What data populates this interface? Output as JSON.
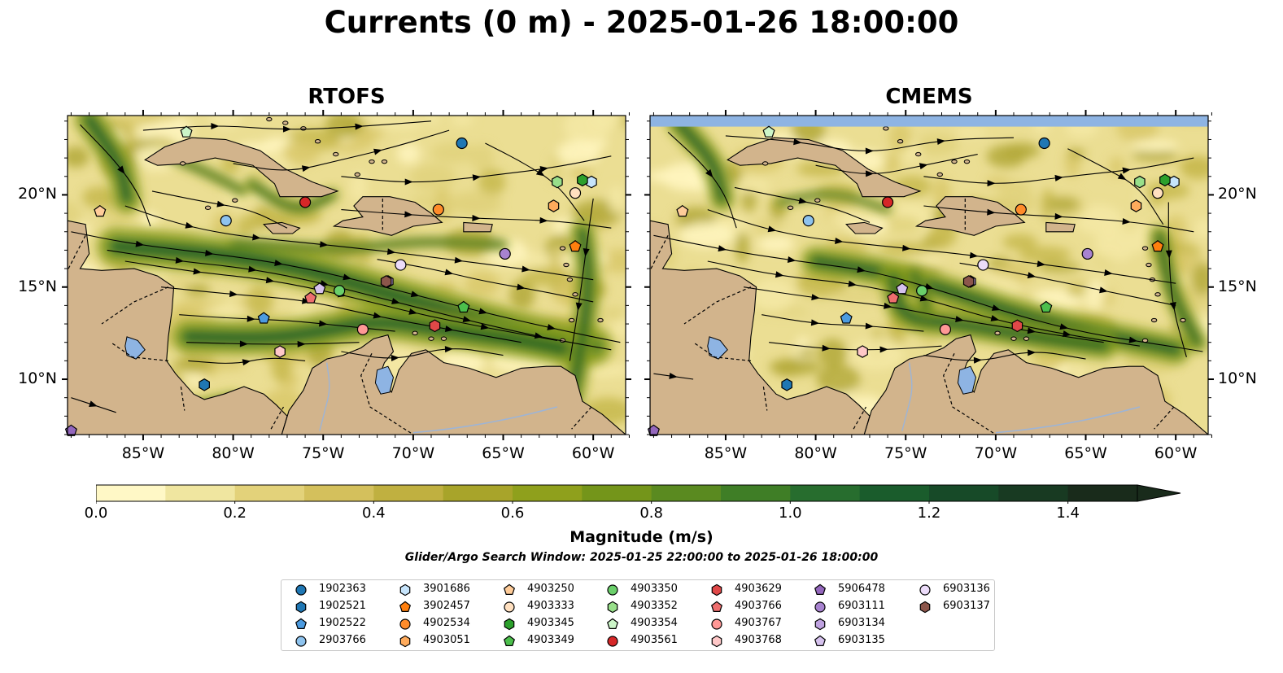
{
  "title": "Currents (0 m) - 2025-01-26 18:00:00",
  "panels": [
    {
      "title": "RTOFS"
    },
    {
      "title": "CMEMS"
    }
  ],
  "axes": {
    "lon_ticks": [
      "85°W",
      "80°W",
      "75°W",
      "70°W",
      "65°W",
      "60°W"
    ],
    "lat_ticks": [
      "20°N",
      "15°N",
      "10°N"
    ]
  },
  "colorbar": {
    "label": "Magnitude (m/s)",
    "ticks": [
      "0.0",
      "0.2",
      "0.4",
      "0.6",
      "0.8",
      "1.0",
      "1.2",
      "1.4"
    ],
    "range": [
      0,
      1.5
    ],
    "extend": "max",
    "colors": [
      "#fff8c6",
      "#f0e6a0",
      "#e3d27a",
      "#d4c05c",
      "#c0b040",
      "#a8a42a",
      "#8fa01c",
      "#74951a",
      "#5a8a20",
      "#3f7e26",
      "#276d2e",
      "#1a5c2c",
      "#174a28",
      "#183a22",
      "#192b1b"
    ]
  },
  "search_window": "Glider/Argo Search Window: 2025-01-25 22:00:00 to 2025-01-26 18:00:00",
  "legend": [
    {
      "id": "1902363",
      "marker": "circle",
      "color": "#1f77b4"
    },
    {
      "id": "1902521",
      "marker": "hexagon",
      "color": "#1f77b4"
    },
    {
      "id": "1902522",
      "marker": "pentagon",
      "color": "#4c9be0"
    },
    {
      "id": "2903766",
      "marker": "circle",
      "color": "#8ec3ee"
    },
    {
      "id": "3901686",
      "marker": "hexagon",
      "color": "#c6e4fb"
    },
    {
      "id": "3902457",
      "marker": "pentagon",
      "color": "#ff7f0e"
    },
    {
      "id": "4902534",
      "marker": "circle",
      "color": "#ff8c2a"
    },
    {
      "id": "4903051",
      "marker": "hexagon",
      "color": "#ffab5c"
    },
    {
      "id": "4903250",
      "marker": "pentagon",
      "color": "#ffcc99"
    },
    {
      "id": "4903333",
      "marker": "circle",
      "color": "#ffe0c0"
    },
    {
      "id": "4903345",
      "marker": "hexagon",
      "color": "#2ca02c"
    },
    {
      "id": "4903349",
      "marker": "pentagon",
      "color": "#4cbf4c"
    },
    {
      "id": "4903350",
      "marker": "circle",
      "color": "#6acf6a"
    },
    {
      "id": "4903352",
      "marker": "hexagon",
      "color": "#98df8a"
    },
    {
      "id": "4903354",
      "marker": "pentagon",
      "color": "#ccf5c8"
    },
    {
      "id": "4903561",
      "marker": "circle",
      "color": "#d62728"
    },
    {
      "id": "4903629",
      "marker": "hexagon",
      "color": "#e04848"
    },
    {
      "id": "4903766",
      "marker": "pentagon",
      "color": "#ee6e6e"
    },
    {
      "id": "4903767",
      "marker": "circle",
      "color": "#ff9896"
    },
    {
      "id": "4903768",
      "marker": "hexagon",
      "color": "#ffc8c8"
    },
    {
      "id": "5906478",
      "marker": "pentagon",
      "color": "#9467bd"
    },
    {
      "id": "6903111",
      "marker": "circle",
      "color": "#a883d0"
    },
    {
      "id": "6903134",
      "marker": "hexagon",
      "color": "#bfa2e0"
    },
    {
      "id": "6903135",
      "marker": "pentagon",
      "color": "#d6c2ee"
    },
    {
      "id": "6903136",
      "marker": "circle",
      "color": "#ecdcfa"
    },
    {
      "id": "6903137",
      "marker": "hexagon",
      "color": "#8c564b"
    }
  ],
  "floats": [
    {
      "id": "1902363",
      "lon": -67.3,
      "lat": 22.8
    },
    {
      "id": "1902521",
      "lon": -81.6,
      "lat": 9.7
    },
    {
      "id": "1902522",
      "lon": -78.3,
      "lat": 13.3
    },
    {
      "id": "2903766",
      "lon": -80.4,
      "lat": 18.6
    },
    {
      "id": "3901686",
      "lon": -60.1,
      "lat": 20.7
    },
    {
      "id": "3902457",
      "lon": -61.0,
      "lat": 17.2
    },
    {
      "id": "4902534",
      "lon": -68.6,
      "lat": 19.2
    },
    {
      "id": "4903051",
      "lon": -62.2,
      "lat": 19.4
    },
    {
      "id": "4903250",
      "lon": -87.4,
      "lat": 19.1
    },
    {
      "id": "4903333",
      "lon": -61.0,
      "lat": 20.1
    },
    {
      "id": "4903345",
      "lon": -60.6,
      "lat": 20.8
    },
    {
      "id": "4903349",
      "lon": -67.2,
      "lat": 13.9
    },
    {
      "id": "4903350",
      "lon": -74.1,
      "lat": 14.8
    },
    {
      "id": "4903352",
      "lon": -62.0,
      "lat": 20.7
    },
    {
      "id": "4903354",
      "lon": -82.6,
      "lat": 23.4
    },
    {
      "id": "4903561",
      "lon": -76.0,
      "lat": 19.6
    },
    {
      "id": "4903629",
      "lon": -68.8,
      "lat": 12.9
    },
    {
      "id": "4903766",
      "lon": -75.7,
      "lat": 14.4
    },
    {
      "id": "4903767",
      "lon": -72.8,
      "lat": 12.7
    },
    {
      "id": "4903768",
      "lon": -77.4,
      "lat": 11.5
    },
    {
      "id": "5906478",
      "lon": -89.0,
      "lat": 7.2
    },
    {
      "id": "6903111",
      "lon": -64.9,
      "lat": 16.8
    },
    {
      "id": "6903134",
      "lon": -71.4,
      "lat": 15.3
    },
    {
      "id": "6903135",
      "lon": -75.2,
      "lat": 14.9
    },
    {
      "id": "6903136",
      "lon": -70.7,
      "lat": 16.2
    },
    {
      "id": "6903137",
      "lon": -71.5,
      "lat": 15.3
    }
  ]
}
